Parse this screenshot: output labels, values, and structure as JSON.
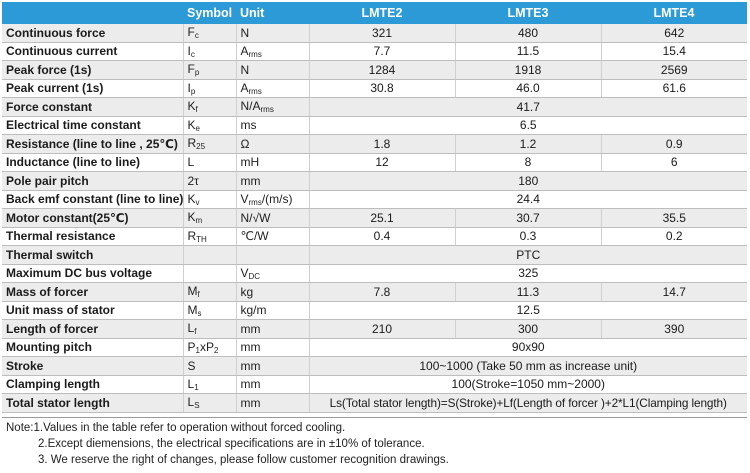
{
  "table": {
    "headers": {
      "name": "",
      "symbol": "Symbol",
      "unit": "Unit",
      "lmte2": "LMTE2",
      "lmte3": "LMTE3",
      "lmte4": "LMTE4"
    },
    "rows": [
      {
        "name": "Continuous force",
        "sym": "F",
        "sym_sub": "c",
        "unit": "N",
        "v2": "321",
        "v3": "480",
        "v4": "642"
      },
      {
        "name": "Continuous current",
        "sym": "I",
        "sym_sub": "c",
        "unit": "A",
        "unit_sub": "rms",
        "v2": "7.7",
        "v3": "11.5",
        "v4": "15.4"
      },
      {
        "name": "Peak force (1s)",
        "sym": "F",
        "sym_sub": "p",
        "unit": "N",
        "v2": "1284",
        "v3": "1918",
        "v4": "2569"
      },
      {
        "name": "Peak current (1s)",
        "sym": "I",
        "sym_sub": "p",
        "unit": "A",
        "unit_sub": "rms",
        "v2": "30.8",
        "v3": "46.0",
        "v4": "61.6"
      },
      {
        "name": "Force constant",
        "sym": "K",
        "sym_sub": "f",
        "unit": "N/A",
        "unit_sub": "rms",
        "span": "41.7"
      },
      {
        "name": "Electrical time constant",
        "sym": "K",
        "sym_sub": "e",
        "unit": "ms",
        "span": "6.5"
      },
      {
        "name": "Resistance (line to line , 25℃)",
        "sym": "R",
        "sym_sub": "25",
        "unit": "Ω",
        "v2": "1.8",
        "v3": "1.2",
        "v4": "0.9"
      },
      {
        "name": "Inductance (line to line)",
        "sym": "L",
        "unit": "mH",
        "v2": "12",
        "v3": "8",
        "v4": "6"
      },
      {
        "name": "Pole pair pitch",
        "sym": "2τ",
        "unit": "mm",
        "span": "180"
      },
      {
        "name": "Back emf constant (line to line)",
        "sym": "K",
        "sym_sub": "v",
        "unit": "V",
        "unit_sub": "rms",
        "unit_tail": "/(m/s)",
        "span": "24.4"
      },
      {
        "name": "Motor constant(25℃)",
        "sym": "K",
        "sym_sub": "m",
        "unit": "N/√W",
        "v2": "25.1",
        "v3": "30.7",
        "v4": "35.5"
      },
      {
        "name": "Thermal resistance",
        "sym": "R",
        "sym_sub": "TH",
        "unit": "℃/W",
        "v2": "0.4",
        "v3": "0.3",
        "v4": "0.2"
      },
      {
        "name": "Thermal switch",
        "sym": "",
        "unit": "",
        "span": "PTC"
      },
      {
        "name": "Maximum DC bus voltage",
        "sym": "",
        "unit": "V",
        "unit_sub": "DC",
        "span": "325"
      },
      {
        "name": "Mass of forcer",
        "sym": "M",
        "sym_sub": "f",
        "unit": "kg",
        "v2": "7.8",
        "v3": "11.3",
        "v4": "14.7"
      },
      {
        "name": "Unit mass of stator",
        "sym": "M",
        "sym_sub": "s",
        "unit": "kg/m",
        "span": "12.5"
      },
      {
        "name": "Length of forcer",
        "sym": "L",
        "sym_sub": "f",
        "unit": "mm",
        "v2": "210",
        "v3": "300",
        "v4": "390"
      },
      {
        "name": "Mounting pitch",
        "sym": "P",
        "sym_sub": "1",
        "sym_mid": "xP",
        "sym_sub2": "2",
        "unit": "mm",
        "span": "90x90"
      },
      {
        "name": "Stroke",
        "sym": "S",
        "unit": "mm",
        "span": "100~1000 (Take 50 mm as increase unit)"
      },
      {
        "name": "Clamping length",
        "sym": "L",
        "sym_sub": "1",
        "unit": "mm",
        "span": "100(Stroke=1050 mm~2000)"
      },
      {
        "name": "Total stator length",
        "sym": "L",
        "sym_sub": "S",
        "unit": "mm",
        "span": "Ls(Total stator length)=S(Stroke)+Lf(Length of forcer )+2*L1(Clamping length)"
      }
    ]
  },
  "notes": [
    "Note:1.Values in the table refer to operation without forced cooling.",
    "2.Except diemensions, the electrical specifications are in ±10% of tolerance.",
    "3. We reserve the right of changes, please follow customer recognition drawings."
  ]
}
